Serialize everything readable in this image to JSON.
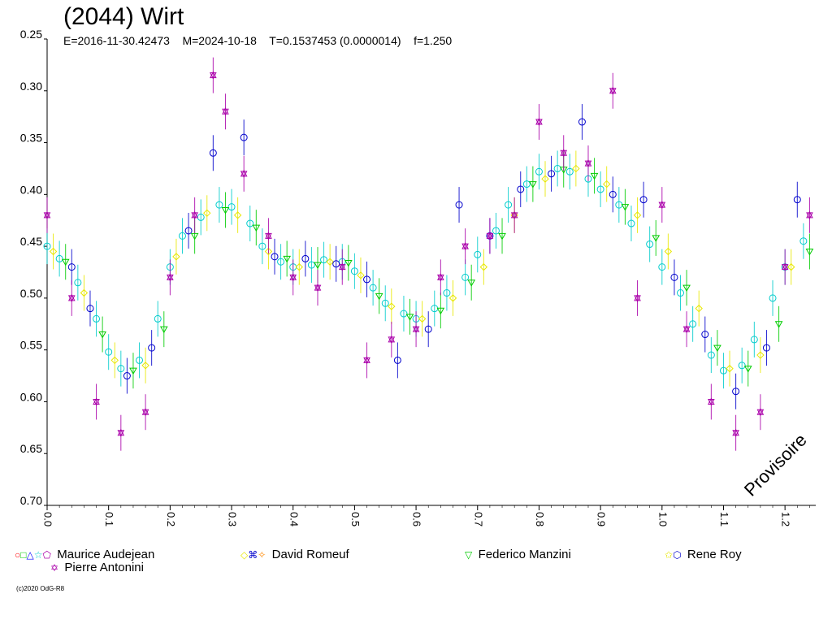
{
  "title": "(2044) Wirt",
  "subtitle": "E=2016-11-30.42473    M=2024-10-18    T=0.1537453 (0.0000014)    f=1.250",
  "watermark": "Provisoire",
  "copyright": "(c)2020 OdG-R8",
  "legend": [
    {
      "name": "Maurice Audejean",
      "symbols": [
        {
          "glyph": "○",
          "color": "#ff0000"
        },
        {
          "glyph": "□",
          "color": "#00cc00"
        },
        {
          "glyph": "△",
          "color": "#0000ff"
        },
        {
          "glyph": "☆",
          "color": "#00cccc"
        },
        {
          "glyph": "⬠",
          "color": "#aa00aa"
        }
      ]
    },
    {
      "name": "David Romeuf",
      "symbols": [
        {
          "glyph": "◇",
          "color": "#e8e800"
        },
        {
          "glyph": "⌘",
          "color": "#0000cc"
        },
        {
          "glyph": "✧",
          "color": "#ff8800"
        }
      ]
    },
    {
      "name": "Federico Manzini",
      "symbols": [
        {
          "glyph": "▽",
          "color": "#00cc00"
        }
      ]
    },
    {
      "name": "Rene Roy",
      "symbols": [
        {
          "glyph": "✩",
          "color": "#e8e800"
        },
        {
          "glyph": "⬡",
          "color": "#0000cc"
        }
      ]
    },
    {
      "name": "Pierre Antonini",
      "symbols": [
        {
          "glyph": "✡",
          "color": "#aa00aa"
        }
      ]
    }
  ],
  "chart_data": {
    "type": "scatter",
    "title": "(2044) Wirt",
    "subtitle": "E=2016-11-30.42473    M=2024-10-18    T=0.1537453 (0.0000014)    f=1.250",
    "xlabel": "",
    "ylabel": "",
    "xlim": [
      0.0,
      1.25
    ],
    "ylim": [
      0.25,
      0.7
    ],
    "y_inverted": true,
    "x_ticks": [
      "0.0",
      "0.1",
      "0.2",
      "0.3",
      "0.4",
      "0.5",
      "0.6",
      "0.7",
      "0.8",
      "0.9",
      "1.0",
      "1.1",
      "1.2"
    ],
    "y_ticks": [
      "0.25",
      "0.30",
      "0.35",
      "0.40",
      "0.45",
      "0.50",
      "0.55",
      "0.60",
      "0.65",
      "0.70"
    ],
    "grid": false,
    "series": [
      {
        "name": "Maurice Audejean",
        "color": "#00cccc",
        "marker": "circle",
        "x": [
          0.0,
          0.02,
          0.05,
          0.08,
          0.1,
          0.12,
          0.15,
          0.18,
          0.2,
          0.22,
          0.25,
          0.28,
          0.3,
          0.33,
          0.35,
          0.38,
          0.4,
          0.43,
          0.45,
          0.48,
          0.5,
          0.53,
          0.55,
          0.58,
          0.6,
          0.63,
          0.65,
          0.68,
          0.7,
          0.73,
          0.75,
          0.78,
          0.8,
          0.83,
          0.85,
          0.88,
          0.9,
          0.93,
          0.95,
          0.98,
          1.0,
          1.03,
          1.05,
          1.08,
          1.1,
          1.13,
          1.15,
          1.18,
          1.2,
          1.23
        ],
        "y": [
          0.45,
          0.462,
          0.485,
          0.52,
          0.552,
          0.568,
          0.56,
          0.52,
          0.47,
          0.44,
          0.422,
          0.41,
          0.412,
          0.428,
          0.45,
          0.465,
          0.47,
          0.468,
          0.463,
          0.465,
          0.474,
          0.49,
          0.505,
          0.515,
          0.52,
          0.51,
          0.495,
          0.48,
          0.458,
          0.435,
          0.41,
          0.39,
          0.378,
          0.375,
          0.378,
          0.385,
          0.395,
          0.41,
          0.428,
          0.448,
          0.47,
          0.495,
          0.525,
          0.555,
          0.57,
          0.565,
          0.54,
          0.5,
          0.47,
          0.445
        ]
      },
      {
        "name": "David Romeuf",
        "color": "#e8e800",
        "marker": "diamond",
        "x": [
          0.01,
          0.06,
          0.11,
          0.16,
          0.21,
          0.26,
          0.31,
          0.36,
          0.41,
          0.46,
          0.51,
          0.56,
          0.61,
          0.66,
          0.71,
          0.76,
          0.81,
          0.86,
          0.91,
          0.96,
          1.01,
          1.06,
          1.11,
          1.16,
          1.21
        ],
        "y": [
          0.455,
          0.495,
          0.56,
          0.565,
          0.46,
          0.418,
          0.42,
          0.455,
          0.47,
          0.465,
          0.478,
          0.508,
          0.52,
          0.5,
          0.47,
          0.42,
          0.385,
          0.375,
          0.39,
          0.42,
          0.455,
          0.51,
          0.568,
          0.555,
          0.47
        ]
      },
      {
        "name": "Federico Manzini",
        "color": "#00cc00",
        "marker": "triangle-down",
        "x": [
          0.03,
          0.09,
          0.14,
          0.19,
          0.24,
          0.29,
          0.34,
          0.39,
          0.44,
          0.49,
          0.54,
          0.59,
          0.64,
          0.69,
          0.74,
          0.79,
          0.84,
          0.89,
          0.94,
          0.99,
          1.04,
          1.09,
          1.14,
          1.19,
          1.24
        ],
        "y": [
          0.465,
          0.535,
          0.57,
          0.53,
          0.44,
          0.415,
          0.432,
          0.462,
          0.468,
          0.466,
          0.498,
          0.518,
          0.512,
          0.485,
          0.44,
          0.39,
          0.376,
          0.382,
          0.412,
          0.442,
          0.49,
          0.548,
          0.568,
          0.525,
          0.455
        ]
      },
      {
        "name": "Rene Roy",
        "color": "#0000cc",
        "marker": "hexagon",
        "x": [
          0.04,
          0.07,
          0.13,
          0.17,
          0.23,
          0.27,
          0.32,
          0.37,
          0.42,
          0.47,
          0.52,
          0.57,
          0.62,
          0.67,
          0.72,
          0.77,
          0.82,
          0.87,
          0.92,
          0.97,
          1.02,
          1.07,
          1.12,
          1.17,
          1.22
        ],
        "y": [
          0.47,
          0.51,
          0.575,
          0.548,
          0.435,
          0.36,
          0.345,
          0.46,
          0.462,
          0.467,
          0.482,
          0.56,
          0.53,
          0.41,
          0.44,
          0.395,
          0.38,
          0.33,
          0.4,
          0.405,
          0.48,
          0.535,
          0.59,
          0.548,
          0.405
        ]
      },
      {
        "name": "Pierre Antonini",
        "color": "#aa00aa",
        "marker": "star",
        "x": [
          0.0,
          0.04,
          0.08,
          0.12,
          0.16,
          0.2,
          0.24,
          0.27,
          0.29,
          0.32,
          0.36,
          0.4,
          0.44,
          0.48,
          0.52,
          0.56,
          0.6,
          0.64,
          0.68,
          0.72,
          0.76,
          0.8,
          0.84,
          0.88,
          0.92,
          0.96,
          1.0,
          1.04,
          1.08,
          1.12,
          1.16,
          1.2,
          1.24
        ],
        "y": [
          0.42,
          0.5,
          0.6,
          0.63,
          0.61,
          0.48,
          0.42,
          0.285,
          0.32,
          0.38,
          0.44,
          0.48,
          0.49,
          0.47,
          0.56,
          0.54,
          0.53,
          0.48,
          0.45,
          0.44,
          0.42,
          0.33,
          0.36,
          0.37,
          0.3,
          0.5,
          0.41,
          0.53,
          0.6,
          0.63,
          0.61,
          0.47,
          0.42
        ]
      }
    ]
  }
}
